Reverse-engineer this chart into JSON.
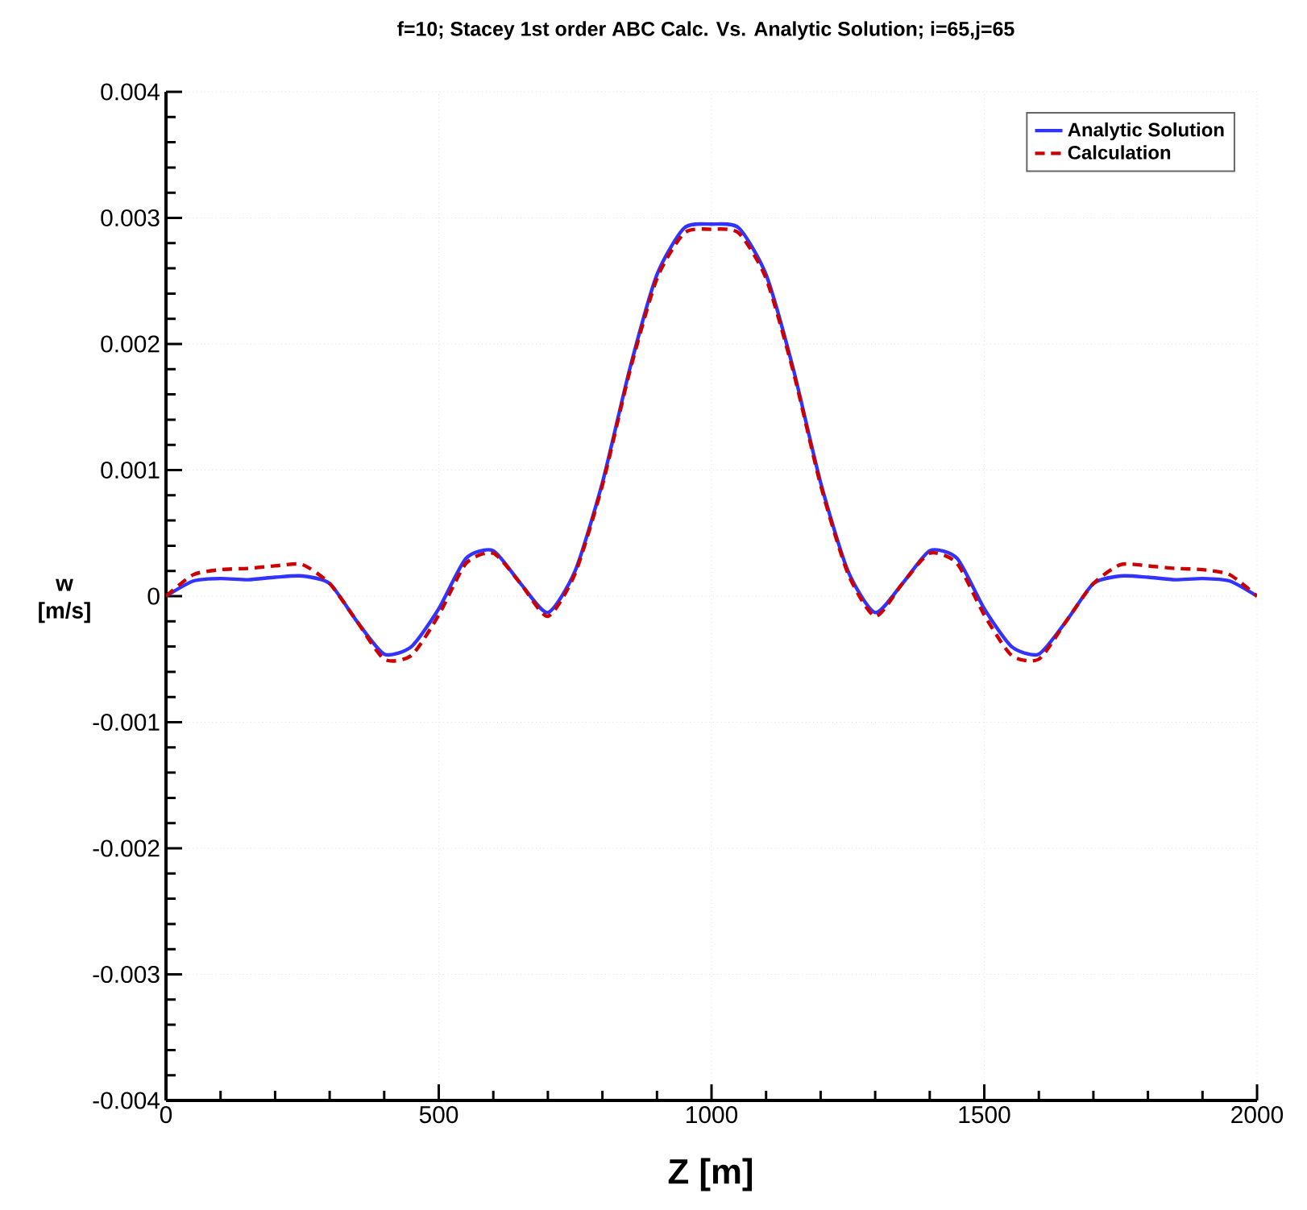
{
  "chart_data": {
    "type": "line",
    "title": "f=10; Stacey 1st order ABC Calc. Vs. Analytic Solution; i=65,j=65",
    "xlabel": "Z [m]",
    "ylabel": "w [m/s]",
    "x": [
      0,
      50,
      100,
      150,
      200,
      250,
      300,
      350,
      400,
      450,
      500,
      550,
      600,
      650,
      700,
      750,
      800,
      850,
      900,
      950,
      1000,
      1050,
      1100,
      1150,
      1200,
      1250,
      1300,
      1350,
      1400,
      1450,
      1500,
      1550,
      1600,
      1650,
      1700,
      1750,
      1800,
      1850,
      1900,
      1950,
      2000
    ],
    "series": [
      {
        "name": "Analytic Solution",
        "color": "#3333ff",
        "line_style": "solid",
        "values": [
          0,
          0.00012,
          0.00014,
          0.00013,
          0.00015,
          0.00016,
          0.0001,
          -0.0002,
          -0.00046,
          -0.0004,
          -0.0001,
          0.0003,
          0.00036,
          0.0001,
          -0.00013,
          0.0002,
          0.0009,
          0.0018,
          0.00255,
          0.00292,
          0.00295,
          0.00292,
          0.00255,
          0.0018,
          0.0009,
          0.0002,
          -0.00013,
          0.0001,
          0.00036,
          0.0003,
          -0.0001,
          -0.0004,
          -0.00046,
          -0.0002,
          0.0001,
          0.00016,
          0.00015,
          0.00013,
          0.00014,
          0.00012,
          0
        ]
      },
      {
        "name": "Calculation",
        "color": "#cc0000",
        "line_style": "dashed",
        "values": [
          0,
          0.00017,
          0.00021,
          0.00022,
          0.00024,
          0.00025,
          0.0001,
          -0.0002,
          -0.0005,
          -0.00047,
          -0.00015,
          0.00026,
          0.00034,
          0.0001,
          -0.00016,
          0.00018,
          0.00088,
          0.00178,
          0.00252,
          0.00288,
          0.00291,
          0.00288,
          0.00252,
          0.00178,
          0.00088,
          0.00018,
          -0.00016,
          0.0001,
          0.00034,
          0.00026,
          -0.00015,
          -0.00047,
          -0.0005,
          -0.0002,
          0.0001,
          0.00025,
          0.00024,
          0.00022,
          0.00021,
          0.00017,
          0
        ]
      }
    ],
    "xlim": [
      0,
      2000
    ],
    "ylim": [
      -0.004,
      0.004
    ],
    "xticks": [
      0,
      500,
      1000,
      1500,
      2000
    ],
    "yticks": [
      -0.004,
      -0.003,
      -0.002,
      -0.001,
      0,
      0.001,
      0.002,
      0.003,
      0.004
    ],
    "grid": true,
    "legend": "top right",
    "marker": "none"
  }
}
